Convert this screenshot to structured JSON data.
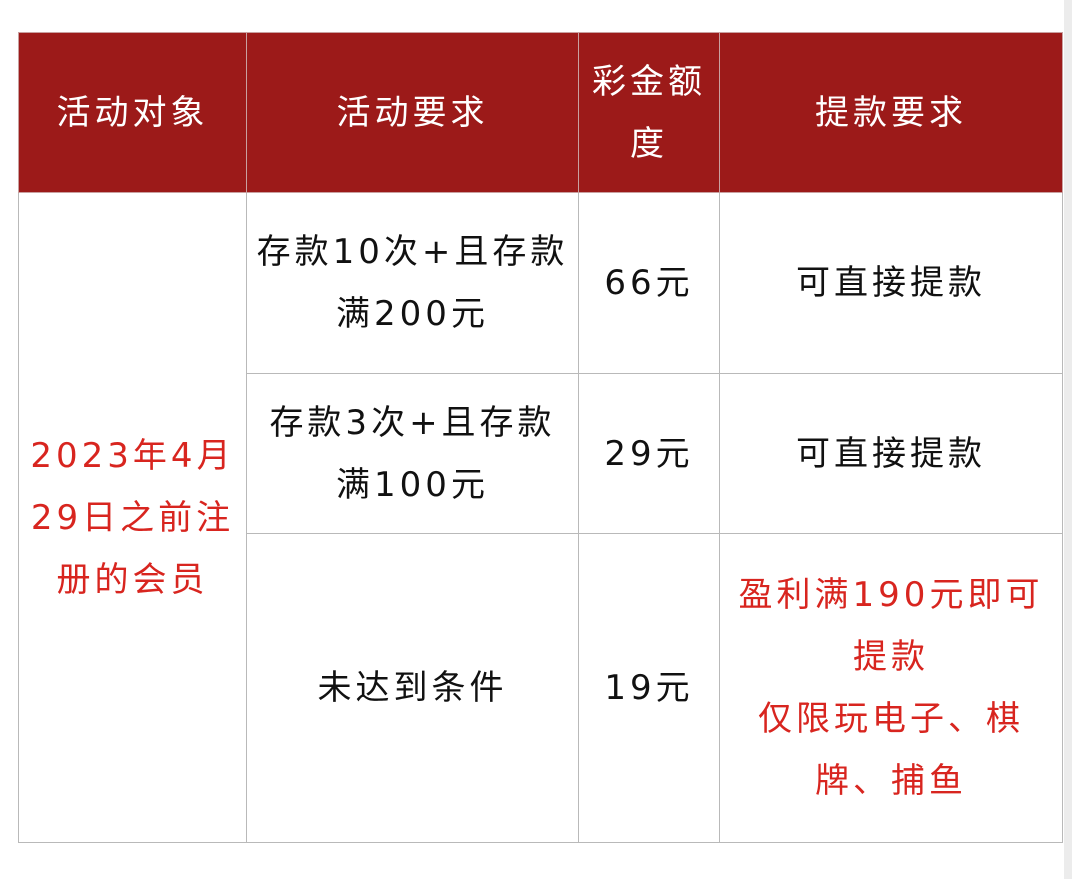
{
  "headers": [
    "活动对象",
    "活动要求",
    "彩金额度",
    "提款要求"
  ],
  "target": "2023年4月29日之前注册的会员",
  "rows": [
    {
      "requirement": "存款10次+且存款满200元",
      "amount": "66元",
      "withdrawal": "可直接提款"
    },
    {
      "requirement": "存款3次+且存款满100元",
      "amount": "29元",
      "withdrawal": "可直接提款"
    },
    {
      "requirement": "未达到条件",
      "amount": "19元",
      "withdrawal": "盈利满190元即可提款",
      "withdrawal_note": "仅限玩电子、棋牌、捕鱼"
    }
  ],
  "colors": {
    "header_bg": "#9c1a19",
    "highlight_text": "#d8251f"
  }
}
